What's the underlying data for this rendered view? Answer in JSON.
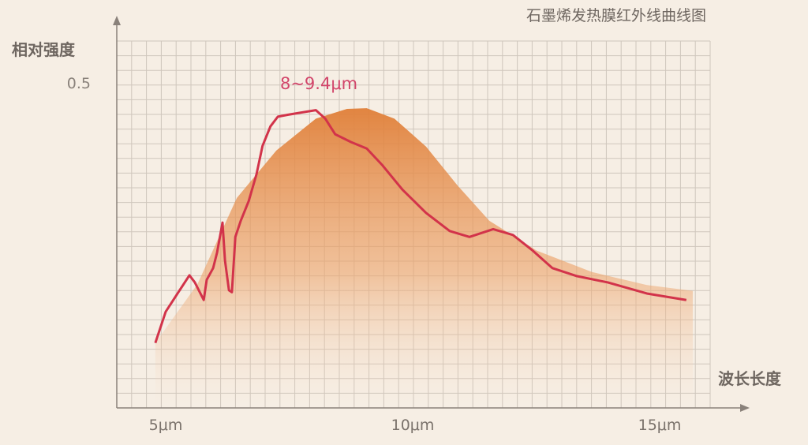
{
  "chart_data": {
    "type": "area",
    "title": "石墨烯发热膜红外线曲线图",
    "xlabel": "波长长度",
    "ylabel": "相对强度",
    "xlim": [
      4.0,
      16.0
    ],
    "ylim": [
      0,
      0.56
    ],
    "x_ticks": [
      {
        "value": 5,
        "label": "5μm"
      },
      {
        "value": 10,
        "label": "10μm"
      },
      {
        "value": 15,
        "label": "15μm"
      }
    ],
    "y_ticks": [
      {
        "value": 0.5,
        "label": "0.5"
      }
    ],
    "grid": true,
    "annotation": {
      "text": "8~9.4μm",
      "x": 8.1,
      "y": 0.49
    },
    "colors": {
      "line": "#d2334a",
      "area": "#e3843e",
      "grid": "#cfc6bc",
      "axis": "#8a817a",
      "annotation": "#d2456a"
    },
    "series": [
      {
        "kind": "area",
        "points": [
          [
            4.79,
            0.1
          ],
          [
            5.64,
            0.19
          ],
          [
            6.44,
            0.323
          ],
          [
            7.24,
            0.396
          ],
          [
            8.04,
            0.445
          ],
          [
            8.67,
            0.46
          ],
          [
            9.07,
            0.461
          ],
          [
            9.63,
            0.445
          ],
          [
            10.27,
            0.402
          ],
          [
            10.91,
            0.342
          ],
          [
            11.55,
            0.288
          ],
          [
            12.51,
            0.242
          ],
          [
            13.63,
            0.209
          ],
          [
            14.74,
            0.189
          ],
          [
            15.67,
            0.18
          ]
        ]
      },
      {
        "kind": "line",
        "points": [
          [
            4.79,
            0.1
          ],
          [
            5.0,
            0.148
          ],
          [
            5.24,
            0.176
          ],
          [
            5.48,
            0.204
          ],
          [
            5.59,
            0.193
          ],
          [
            5.77,
            0.166
          ],
          [
            5.83,
            0.197
          ],
          [
            5.96,
            0.215
          ],
          [
            6.04,
            0.239
          ],
          [
            6.15,
            0.285
          ],
          [
            6.2,
            0.227
          ],
          [
            6.28,
            0.181
          ],
          [
            6.34,
            0.178
          ],
          [
            6.41,
            0.263
          ],
          [
            6.52,
            0.288
          ],
          [
            6.68,
            0.318
          ],
          [
            6.84,
            0.36
          ],
          [
            6.96,
            0.403
          ],
          [
            7.12,
            0.433
          ],
          [
            7.27,
            0.448
          ],
          [
            7.48,
            0.451
          ],
          [
            7.72,
            0.454
          ],
          [
            8.04,
            0.458
          ],
          [
            8.23,
            0.445
          ],
          [
            8.43,
            0.421
          ],
          [
            8.75,
            0.409
          ],
          [
            9.07,
            0.399
          ],
          [
            9.39,
            0.373
          ],
          [
            9.79,
            0.336
          ],
          [
            10.27,
            0.3
          ],
          [
            10.75,
            0.272
          ],
          [
            11.15,
            0.263
          ],
          [
            11.63,
            0.275
          ],
          [
            12.03,
            0.266
          ],
          [
            12.43,
            0.242
          ],
          [
            12.83,
            0.215
          ],
          [
            13.31,
            0.203
          ],
          [
            13.95,
            0.193
          ],
          [
            14.74,
            0.176
          ],
          [
            15.54,
            0.166
          ]
        ]
      }
    ]
  }
}
